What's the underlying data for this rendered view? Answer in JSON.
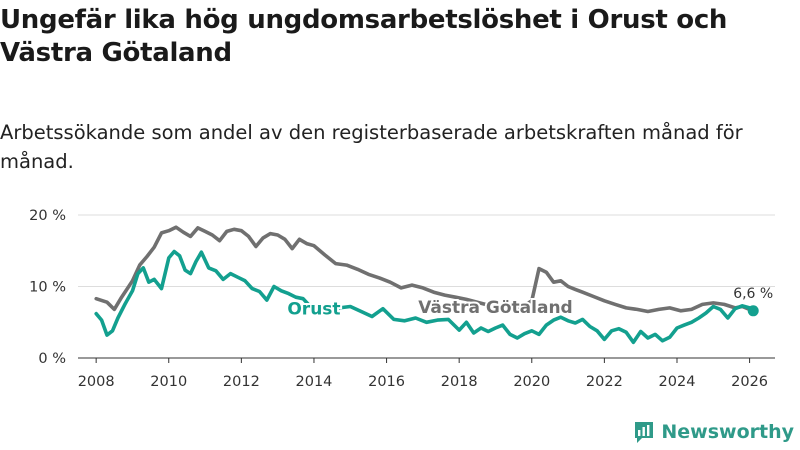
{
  "page": {
    "title": "Ungefär lika hög ungdomsarbetslöshet i Orust och Västra Götaland",
    "subtitle": "Arbetssökande som andel av den registerbaserade arbetskraften månad för månad.",
    "brand": "Newsworthy"
  },
  "colors": {
    "orust": "#13a08f",
    "vastra": "#707070",
    "grid": "#dddddd",
    "axis": "#333333",
    "text": "#333333",
    "brand": "#2f9a89"
  },
  "chart_data": {
    "type": "line",
    "title": "Ungefär lika hög ungdomsarbetslöshet i Orust och Västra Götaland",
    "subtitle": "Arbetssökande som andel av den registerbaserade arbetskraften månad för månad.",
    "xlabel": "",
    "ylabel": "",
    "xlim": [
      2007.5,
      2026.7
    ],
    "ylim": [
      0,
      20
    ],
    "yticks": [
      0,
      10,
      20
    ],
    "ytick_labels": [
      "0 %",
      "10 %",
      "20 %"
    ],
    "xticks": [
      2008,
      2010,
      2012,
      2014,
      2016,
      2018,
      2020,
      2022,
      2024,
      2026
    ],
    "xtick_labels": [
      "2008",
      "2010",
      "2012",
      "2014",
      "2016",
      "2018",
      "2020",
      "2022",
      "2024",
      "2026"
    ],
    "grid": true,
    "legend": "inline labels",
    "series": [
      {
        "name": "Västra Götaland",
        "label": "Västra Götaland",
        "x": [
          2008.0,
          2008.3,
          2008.5,
          2008.7,
          2009.0,
          2009.2,
          2009.4,
          2009.6,
          2009.8,
          2010.0,
          2010.2,
          2010.4,
          2010.6,
          2010.8,
          2011.0,
          2011.2,
          2011.4,
          2011.6,
          2011.8,
          2012.0,
          2012.2,
          2012.4,
          2012.6,
          2012.8,
          2013.0,
          2013.2,
          2013.4,
          2013.6,
          2013.8,
          2014.0,
          2014.3,
          2014.6,
          2014.9,
          2015.2,
          2015.5,
          2015.8,
          2016.1,
          2016.4,
          2016.7,
          2017.0,
          2017.3,
          2017.6,
          2017.9,
          2018.2,
          2018.5,
          2018.8,
          2019.1,
          2019.4,
          2019.7,
          2020.0,
          2020.2,
          2020.4,
          2020.6,
          2020.8,
          2021.0,
          2021.2,
          2021.4,
          2021.7,
          2022.0,
          2022.3,
          2022.6,
          2022.9,
          2023.2,
          2023.5,
          2023.8,
          2024.1,
          2024.4,
          2024.7,
          2025.0,
          2025.3,
          2025.6,
          2025.8,
          2026.0,
          2026.1
        ],
        "values": [
          8.3,
          7.8,
          6.8,
          8.5,
          10.8,
          13.0,
          14.2,
          15.5,
          17.5,
          17.8,
          18.3,
          17.6,
          17.0,
          18.2,
          17.7,
          17.2,
          16.4,
          17.7,
          18.0,
          17.8,
          17.0,
          15.6,
          16.8,
          17.4,
          17.2,
          16.6,
          15.3,
          16.6,
          16.0,
          15.7,
          14.4,
          13.2,
          13.0,
          12.4,
          11.7,
          11.2,
          10.6,
          9.8,
          10.2,
          9.8,
          9.2,
          8.8,
          8.5,
          8.2,
          7.8,
          7.4,
          7.0,
          7.3,
          7.0,
          8.0,
          12.5,
          12.0,
          10.6,
          10.8,
          10.0,
          9.6,
          9.2,
          8.6,
          8.0,
          7.5,
          7.0,
          6.8,
          6.5,
          6.8,
          7.0,
          6.6,
          6.8,
          7.5,
          7.7,
          7.5,
          7.0,
          7.2,
          6.8,
          6.6
        ]
      },
      {
        "name": "Orust",
        "label": "Orust",
        "x": [
          2008.0,
          2008.15,
          2008.3,
          2008.45,
          2008.6,
          2008.8,
          2009.0,
          2009.15,
          2009.3,
          2009.45,
          2009.6,
          2009.8,
          2010.0,
          2010.15,
          2010.3,
          2010.45,
          2010.6,
          2010.75,
          2010.9,
          2011.1,
          2011.3,
          2011.5,
          2011.7,
          2011.9,
          2012.1,
          2012.3,
          2012.5,
          2012.7,
          2012.9,
          2013.1,
          2013.3,
          2013.5,
          2013.7,
          2013.9,
          2014.1,
          2014.4,
          2014.7,
          2015.0,
          2015.3,
          2015.6,
          2015.9,
          2016.2,
          2016.5,
          2016.8,
          2017.1,
          2017.4,
          2017.7,
          2018.0,
          2018.2,
          2018.4,
          2018.6,
          2018.8,
          2019.0,
          2019.2,
          2019.4,
          2019.6,
          2019.8,
          2020.0,
          2020.2,
          2020.4,
          2020.6,
          2020.8,
          2021.0,
          2021.2,
          2021.4,
          2021.6,
          2021.8,
          2022.0,
          2022.2,
          2022.4,
          2022.6,
          2022.8,
          2023.0,
          2023.2,
          2023.4,
          2023.6,
          2023.8,
          2024.0,
          2024.2,
          2024.4,
          2024.6,
          2024.8,
          2025.0,
          2025.2,
          2025.4,
          2025.6,
          2025.8,
          2026.0,
          2026.1
        ],
        "values": [
          6.2,
          5.3,
          3.2,
          3.8,
          5.6,
          7.6,
          9.4,
          11.8,
          12.6,
          10.6,
          11.0,
          9.7,
          14.0,
          14.9,
          14.3,
          12.3,
          11.8,
          13.5,
          14.8,
          12.6,
          12.2,
          11.0,
          11.8,
          11.3,
          10.8,
          9.7,
          9.3,
          8.1,
          10.0,
          9.4,
          9.0,
          8.5,
          8.3,
          7.2,
          6.7,
          6.4,
          7.0,
          7.2,
          6.5,
          5.8,
          6.9,
          5.4,
          5.2,
          5.6,
          5.0,
          5.3,
          5.4,
          3.9,
          5.0,
          3.5,
          4.2,
          3.7,
          4.2,
          4.6,
          3.3,
          2.8,
          3.4,
          3.8,
          3.3,
          4.6,
          5.3,
          5.7,
          5.2,
          4.9,
          5.4,
          4.4,
          3.8,
          2.6,
          3.8,
          4.1,
          3.6,
          2.2,
          3.7,
          2.8,
          3.3,
          2.4,
          2.9,
          4.2,
          4.6,
          5.0,
          5.6,
          6.3,
          7.2,
          6.8,
          5.6,
          6.9,
          7.3,
          7.0,
          6.6
        ]
      }
    ],
    "annotations": [
      {
        "text": "Orust",
        "series": "Orust",
        "x": 2014.0
      },
      {
        "text": "Västra Götaland",
        "series": "Västra Götaland",
        "x": 2019.0
      },
      {
        "text": "6,6 %",
        "series": "Orust",
        "x": 2026.1,
        "value": 6.6
      }
    ]
  }
}
